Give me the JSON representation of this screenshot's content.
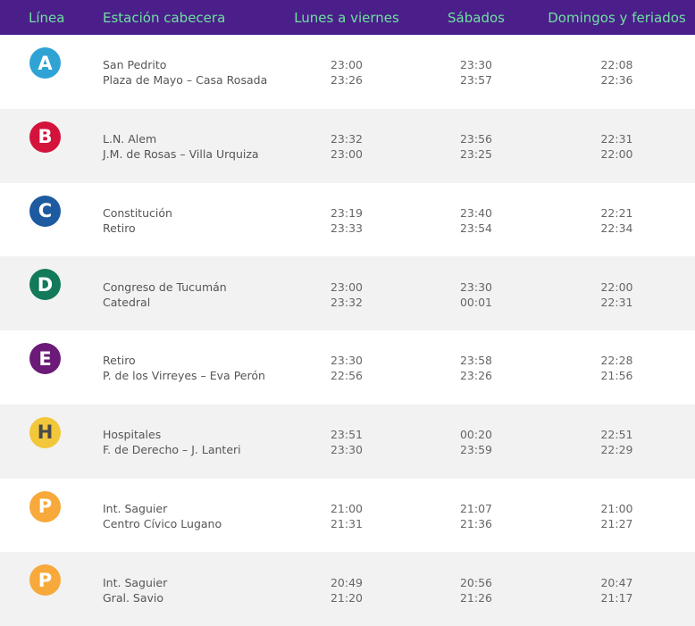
{
  "header": {
    "line": "Línea",
    "station": "Estación cabecera",
    "weekdays": "Lunes a viernes",
    "saturdays": "Sábados",
    "sundays": "Domingos y feriados"
  },
  "colors": {
    "header_bg": "#4a1f8a",
    "header_text": "#6fe0a0",
    "row_alt_bg": "#f2f2f2"
  },
  "rows": [
    {
      "line": "A",
      "color": "#2fa4d4",
      "stations": [
        "San Pedrito",
        "Plaza de Mayo – Casa Rosada"
      ],
      "weekdays": [
        "23:00",
        "23:26"
      ],
      "saturdays": [
        "23:30",
        "23:57"
      ],
      "sundays": [
        "22:08",
        "22:36"
      ]
    },
    {
      "line": "B",
      "color": "#d4133c",
      "stations": [
        "L.N. Alem",
        "J.M. de Rosas – Villa Urquiza"
      ],
      "weekdays": [
        "23:32",
        "23:00"
      ],
      "saturdays": [
        "23:56",
        "23:25"
      ],
      "sundays": [
        "22:31",
        "22:00"
      ]
    },
    {
      "line": "C",
      "color": "#1d5aa0",
      "stations": [
        "Constitución",
        "Retiro"
      ],
      "weekdays": [
        "23:19",
        "23:33"
      ],
      "saturdays": [
        "23:40",
        "23:54"
      ],
      "sundays": [
        "22:21",
        "22:34"
      ]
    },
    {
      "line": "D",
      "color": "#127a5a",
      "stations": [
        "Congreso de Tucumán",
        "Catedral"
      ],
      "weekdays": [
        "23:00",
        "23:32"
      ],
      "saturdays": [
        "23:30",
        "00:01"
      ],
      "sundays": [
        "22:00",
        "22:31"
      ]
    },
    {
      "line": "E",
      "color": "#6b1a78",
      "stations": [
        "Retiro",
        "P. de los Virreyes – Eva Perón"
      ],
      "weekdays": [
        "23:30",
        "22:56"
      ],
      "saturdays": [
        "23:58",
        "23:26"
      ],
      "sundays": [
        "22:28",
        "21:56"
      ]
    },
    {
      "line": "H",
      "color": "#f2c739",
      "stations": [
        "Hospitales",
        "F. de Derecho – J. Lanteri"
      ],
      "weekdays": [
        "23:51",
        "23:30"
      ],
      "saturdays": [
        "00:20",
        "23:59"
      ],
      "sundays": [
        "22:51",
        "22:29"
      ]
    },
    {
      "line": "P",
      "color": "#f7a93b",
      "stations": [
        "Int. Saguier",
        "Centro Cívico Lugano"
      ],
      "weekdays": [
        "21:00",
        "21:31"
      ],
      "saturdays": [
        "21:07",
        "21:36"
      ],
      "sundays": [
        "21:00",
        "21:27"
      ]
    },
    {
      "line": "P",
      "color": "#f7a93b",
      "stations": [
        "Int. Saguier",
        "Gral. Savio"
      ],
      "weekdays": [
        "20:49",
        "21:20"
      ],
      "saturdays": [
        "20:56",
        "21:26"
      ],
      "sundays": [
        "20:47",
        "21:17"
      ]
    }
  ]
}
